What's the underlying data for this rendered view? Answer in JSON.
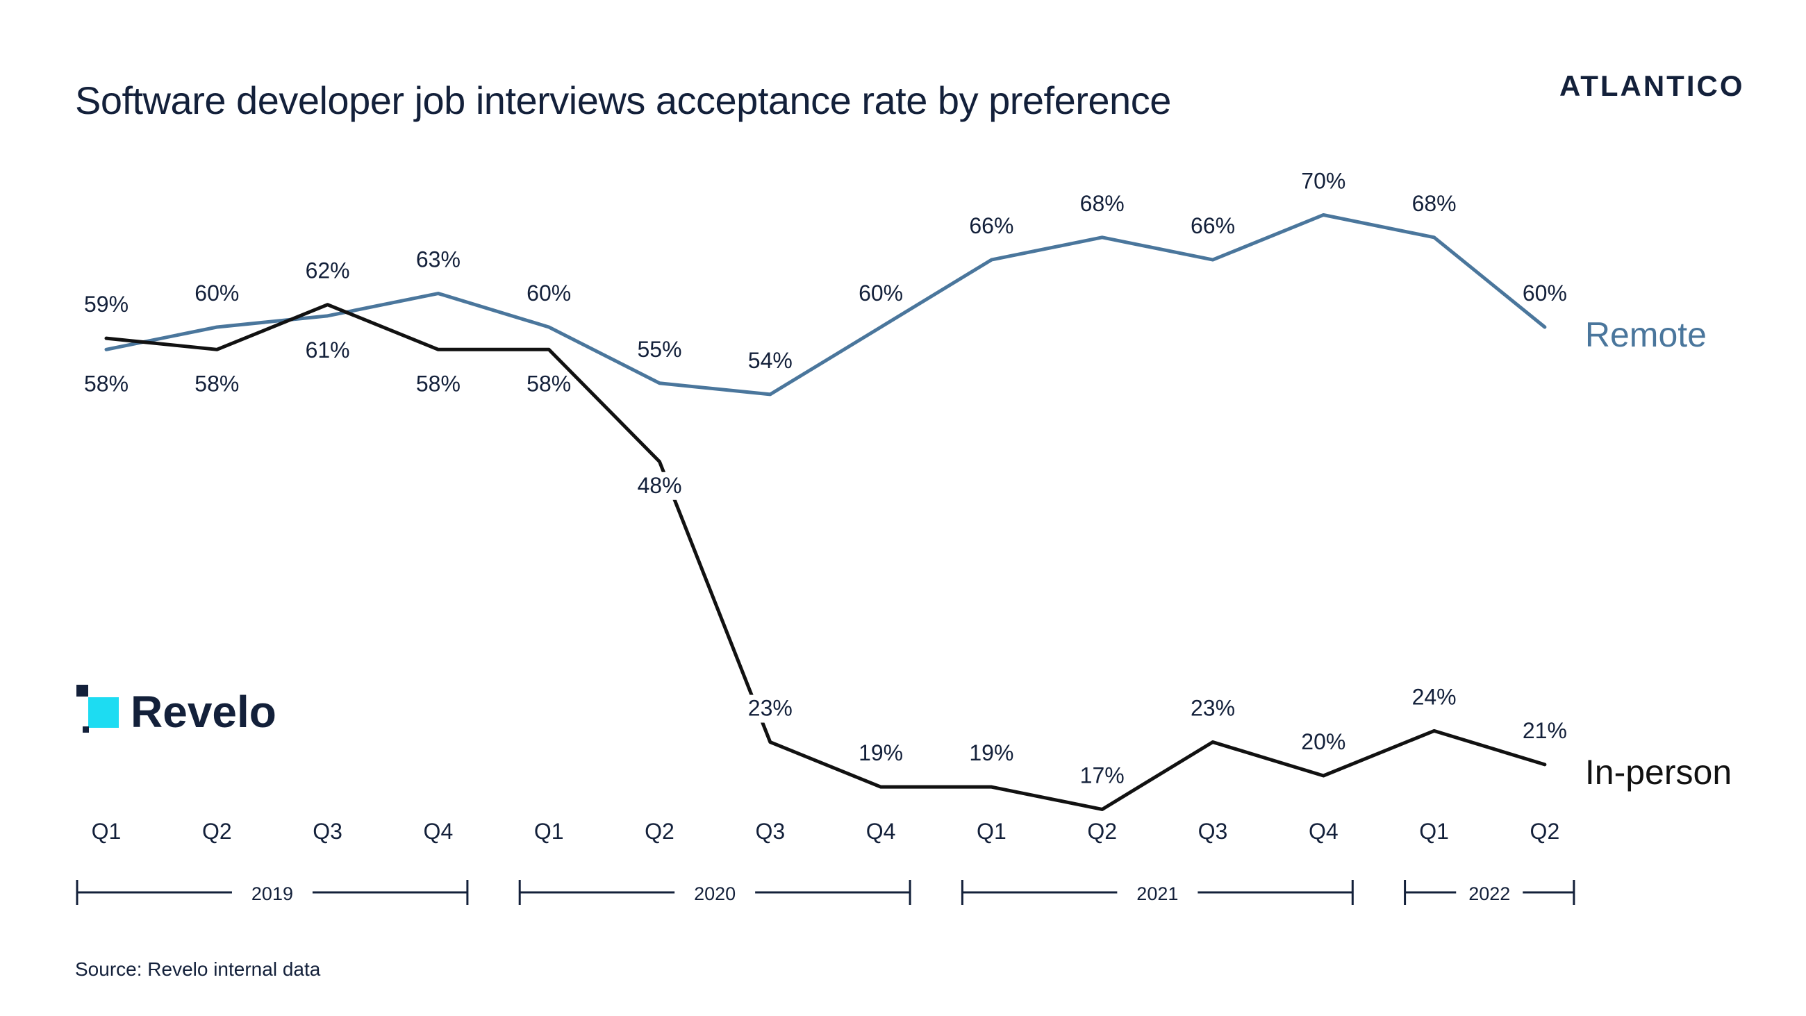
{
  "title": "Software developer job interviews acceptance rate by preference",
  "brand": "ATLANTICO",
  "source": "Source: Revelo internal data",
  "sponsor": "Revelo",
  "colors": {
    "remote": "#4a769c",
    "in_person": "#111111",
    "text": "#13203a",
    "revelo_cyan": "#1ddcf2"
  },
  "chart_data": {
    "type": "line",
    "categories": [
      "Q1",
      "Q2",
      "Q3",
      "Q4",
      "Q1",
      "Q2",
      "Q3",
      "Q4",
      "Q1",
      "Q2",
      "Q3",
      "Q4",
      "Q1",
      "Q2"
    ],
    "year_groups": [
      {
        "label": "2019",
        "start": 0,
        "end": 3
      },
      {
        "label": "2020",
        "start": 4,
        "end": 7
      },
      {
        "label": "2021",
        "start": 8,
        "end": 11
      },
      {
        "label": "2022",
        "start": 12,
        "end": 13
      }
    ],
    "series": [
      {
        "name": "Remote",
        "values": [
          58,
          60,
          61,
          63,
          60,
          55,
          54,
          60,
          66,
          68,
          66,
          70,
          68,
          60
        ],
        "labels": [
          "58%",
          "60%",
          "61%",
          "63%",
          "60%",
          "55%",
          "54%",
          "60%",
          "66%",
          "68%",
          "66%",
          "70%",
          "68%",
          "60%"
        ]
      },
      {
        "name": "In-person",
        "values": [
          59,
          58,
          62,
          58,
          58,
          48,
          23,
          19,
          19,
          17,
          23,
          20,
          24,
          21
        ],
        "labels": [
          "59%",
          "58%",
          "62%",
          "58%",
          "58%",
          "48%",
          "23%",
          "19%",
          "19%",
          "17%",
          "23%",
          "20%",
          "24%",
          "21%"
        ]
      }
    ],
    "ylim": [
      10,
      75
    ],
    "grid": false,
    "legend": "right"
  }
}
